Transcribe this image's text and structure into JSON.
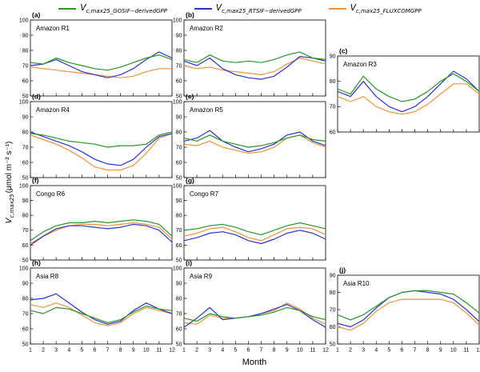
{
  "figure": {
    "xlabel": "Month",
    "ylabel": {
      "var": "V",
      "sub": "c,max25",
      "units": "(μmol m⁻² s⁻¹)"
    }
  },
  "legend": {
    "entries": [
      {
        "var": "V",
        "sub": "c,max25_GOSIF−derivedGPP",
        "color": "#2b9428"
      },
      {
        "var": "V",
        "sub": "c,max25_RTSIF−derivedGPP",
        "color": "#2b35c9"
      },
      {
        "var": "V",
        "sub": "c,max25_FLUXCOMGPP",
        "color": "#ed9442"
      }
    ]
  },
  "chart_data": {
    "type": "line",
    "x": [
      1,
      2,
      3,
      4,
      5,
      6,
      7,
      8,
      9,
      10,
      11,
      12
    ],
    "xlabel": "Month",
    "ylabel": "Vc,max25 (umol m-2 s-1)",
    "colors": {
      "gosif": "#2b9428",
      "rtsif": "#2b35c9",
      "fluxcom": "#ed9442"
    },
    "series_names": {
      "gosif": "Vc,max25_GOSIF-derivedGPP",
      "rtsif": "Vc,max25_RTSIF-derivedGPP",
      "fluxcom": "Vc,max25_FLUXCOMGPP"
    },
    "panels": [
      {
        "id": "a",
        "region": "Amazon R1",
        "ylim": [
          50,
          100
        ],
        "yticks": [
          50,
          60,
          70,
          80,
          90,
          100
        ],
        "show_x_ticks": false,
        "series": {
          "gosif": [
            72,
            71,
            75,
            72,
            70,
            68,
            67,
            69,
            72,
            75,
            77,
            74
          ],
          "rtsif": [
            70,
            71,
            74,
            70,
            66,
            64,
            62,
            64,
            68,
            74,
            79,
            75
          ],
          "fluxcom": [
            69,
            68,
            67,
            66,
            65,
            64,
            63,
            62,
            63,
            66,
            68,
            68
          ]
        }
      },
      {
        "id": "b",
        "region": "Amazon R2",
        "ylim": [
          50,
          100
        ],
        "yticks": [
          50,
          60,
          70,
          80,
          90,
          100
        ],
        "show_x_ticks": false,
        "series": {
          "gosif": [
            74,
            72,
            77,
            73,
            72,
            73,
            72,
            74,
            77,
            79,
            75,
            74
          ],
          "rtsif": [
            73,
            70,
            75,
            68,
            64,
            62,
            61,
            63,
            69,
            76,
            75,
            73
          ],
          "fluxcom": [
            70,
            68,
            69,
            67,
            66,
            65,
            64,
            66,
            71,
            75,
            73,
            71
          ]
        }
      },
      {
        "id": "c",
        "region": "Amazon R3",
        "ylim": [
          60,
          90
        ],
        "yticks": [
          60,
          70,
          80,
          90
        ],
        "show_x_ticks": false,
        "series": {
          "gosif": [
            77,
            75,
            82,
            77,
            74,
            72,
            73,
            76,
            80,
            83,
            80,
            76
          ],
          "rtsif": [
            76,
            74,
            80,
            74,
            70,
            68,
            70,
            74,
            79,
            84,
            81,
            76
          ],
          "fluxcom": [
            74,
            72,
            74,
            70,
            68,
            67,
            68,
            71,
            75,
            79,
            79,
            75
          ]
        }
      },
      {
        "id": "d",
        "region": "Amazon R4",
        "ylim": [
          50,
          100
        ],
        "yticks": [
          50,
          60,
          70,
          80,
          90,
          100
        ],
        "show_x_ticks": false,
        "series": {
          "gosif": [
            79,
            78,
            76,
            74,
            73,
            72,
            70,
            71,
            71,
            72,
            78,
            80
          ],
          "rtsif": [
            80,
            77,
            74,
            71,
            67,
            62,
            59,
            58,
            62,
            70,
            77,
            79
          ],
          "fluxcom": [
            78,
            75,
            72,
            68,
            63,
            57,
            55,
            55,
            58,
            66,
            76,
            79
          ]
        }
      },
      {
        "id": "e",
        "region": "Amazon R5",
        "ylim": [
          50,
          100
        ],
        "yticks": [
          50,
          60,
          70,
          80,
          90,
          100
        ],
        "show_x_ticks": false,
        "series": {
          "gosif": [
            76,
            74,
            78,
            74,
            72,
            70,
            71,
            73,
            76,
            78,
            75,
            74
          ],
          "rtsif": [
            74,
            76,
            81,
            74,
            70,
            67,
            69,
            72,
            78,
            80,
            74,
            71
          ],
          "fluxcom": [
            72,
            71,
            74,
            70,
            68,
            66,
            67,
            70,
            76,
            78,
            73,
            70
          ]
        }
      },
      {
        "id": "f",
        "region": "Congo R6",
        "ylim": [
          50,
          100
        ],
        "yticks": [
          50,
          60,
          70,
          80,
          90,
          100
        ],
        "show_x_ticks": false,
        "series": {
          "gosif": [
            63,
            69,
            73,
            75,
            75,
            76,
            75,
            76,
            77,
            76,
            74,
            66
          ],
          "rtsif": [
            60,
            66,
            71,
            73,
            73,
            72,
            71,
            72,
            74,
            73,
            70,
            62
          ],
          "fluxcom": [
            61,
            66,
            70,
            73,
            74,
            74,
            73,
            74,
            75,
            74,
            72,
            64
          ]
        }
      },
      {
        "id": "g",
        "region": "Congo R7",
        "ylim": [
          50,
          100
        ],
        "yticks": [
          50,
          60,
          70,
          80,
          90,
          100
        ],
        "show_x_ticks": false,
        "series": {
          "gosif": [
            70,
            71,
            73,
            74,
            72,
            69,
            67,
            70,
            73,
            75,
            73,
            71
          ],
          "rtsif": [
            63,
            65,
            68,
            69,
            67,
            63,
            61,
            64,
            68,
            70,
            68,
            64
          ],
          "fluxcom": [
            66,
            68,
            71,
            72,
            69,
            65,
            63,
            67,
            71,
            72,
            71,
            67
          ]
        }
      },
      {
        "id": "h",
        "region": "Asia R8",
        "ylim": [
          50,
          100
        ],
        "yticks": [
          50,
          60,
          70,
          80,
          90,
          100
        ],
        "show_x_ticks": true,
        "series": {
          "gosif": [
            72,
            70,
            74,
            73,
            70,
            67,
            64,
            66,
            71,
            75,
            73,
            72
          ],
          "rtsif": [
            79,
            80,
            83,
            77,
            71,
            66,
            63,
            65,
            72,
            77,
            73,
            70
          ],
          "fluxcom": [
            76,
            74,
            77,
            74,
            69,
            64,
            62,
            64,
            70,
            74,
            72,
            70
          ]
        }
      },
      {
        "id": "i",
        "region": "Asia R9",
        "ylim": [
          50,
          100
        ],
        "yticks": [
          50,
          60,
          70,
          80,
          90,
          100
        ],
        "show_x_ticks": true,
        "series": {
          "gosif": [
            67,
            65,
            70,
            68,
            67,
            68,
            69,
            71,
            74,
            72,
            68,
            66
          ],
          "rtsif": [
            61,
            67,
            74,
            66,
            67,
            68,
            70,
            73,
            76,
            72,
            66,
            61
          ],
          "fluxcom": [
            64,
            63,
            69,
            67,
            67,
            68,
            70,
            72,
            77,
            73,
            67,
            63
          ]
        }
      },
      {
        "id": "j",
        "region": "Asia R10",
        "ylim": [
          50,
          90
        ],
        "yticks": [
          50,
          60,
          70,
          80,
          90
        ],
        "show_x_ticks": true,
        "series": {
          "gosif": [
            67,
            64,
            67,
            72,
            77,
            80,
            81,
            81,
            80,
            79,
            74,
            68
          ],
          "rtsif": [
            62,
            60,
            64,
            71,
            77,
            80,
            81,
            80,
            79,
            76,
            70,
            63
          ],
          "fluxcom": [
            60,
            58,
            62,
            69,
            74,
            76,
            76,
            76,
            76,
            74,
            68,
            61
          ]
        }
      }
    ]
  }
}
